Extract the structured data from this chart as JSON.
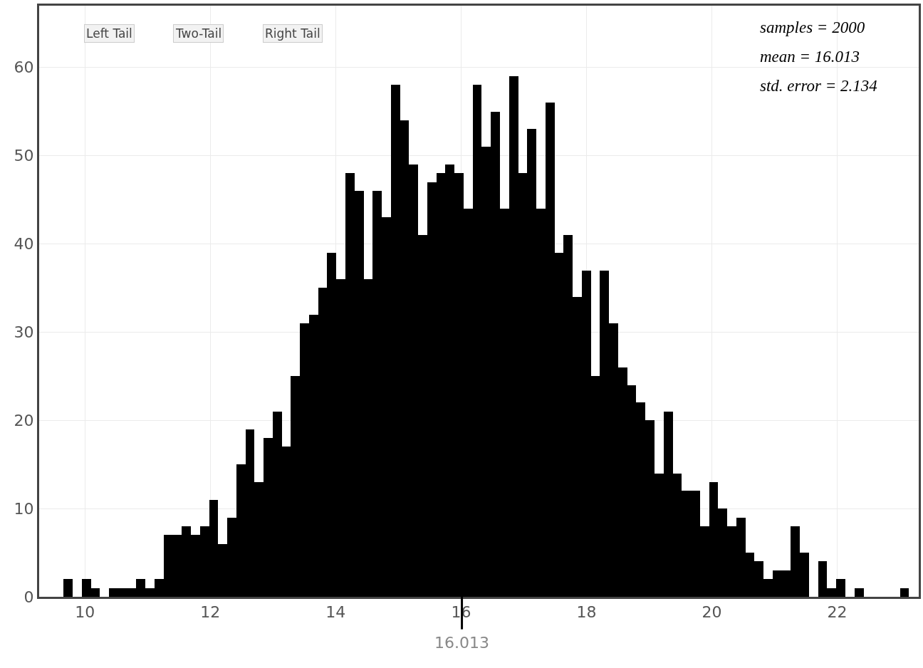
{
  "chart_data": {
    "type": "histogram",
    "bins": [
      9.66,
      9.805,
      9.95,
      10.095,
      10.24,
      10.385,
      10.53,
      10.675,
      10.82,
      10.965,
      11.11,
      11.255,
      11.4,
      11.545,
      11.69,
      11.835,
      11.98,
      12.125,
      12.27,
      12.415,
      12.56,
      12.705,
      12.85,
      12.995,
      13.14,
      13.285,
      13.43,
      13.575,
      13.72,
      13.865,
      14.01,
      14.155,
      14.3,
      14.445,
      14.59,
      14.735,
      14.88,
      15.025,
      15.17,
      15.315,
      15.46,
      15.605,
      15.75,
      15.895,
      16.04,
      16.185,
      16.33,
      16.475,
      16.62,
      16.765,
      16.91,
      17.055,
      17.2,
      17.345,
      17.49,
      17.635,
      17.78,
      17.925,
      18.07,
      18.215,
      18.36,
      18.505,
      18.65,
      18.795,
      18.94,
      19.085,
      19.23,
      19.375,
      19.52,
      19.665,
      19.81,
      19.955,
      20.1,
      20.245,
      20.39,
      20.535,
      20.68,
      20.825,
      20.97,
      21.115,
      21.26,
      21.405,
      21.55,
      21.695,
      21.84,
      21.985,
      22.13,
      22.275,
      22.42,
      22.565,
      22.71,
      22.855,
      23.0,
      23.145
    ],
    "values": [
      2,
      0,
      2,
      1,
      0,
      1,
      1,
      1,
      2,
      1,
      2,
      7,
      7,
      8,
      7,
      8,
      11,
      6,
      9,
      15,
      19,
      13,
      18,
      21,
      17,
      25,
      31,
      32,
      35,
      39,
      36,
      48,
      46,
      36,
      46,
      43,
      58,
      54,
      49,
      41,
      47,
      48,
      49,
      48,
      44,
      58,
      51,
      55,
      44,
      59,
      48,
      53,
      44,
      56,
      39,
      41,
      34,
      37,
      25,
      37,
      31,
      26,
      24,
      22,
      20,
      14,
      21,
      14,
      12,
      12,
      8,
      13,
      10,
      8,
      9,
      5,
      4,
      2,
      3,
      3,
      8,
      5,
      0,
      4,
      1,
      2,
      0,
      1,
      0,
      0,
      0,
      0,
      1
    ],
    "color": "#000000",
    "xlim": [
      9.27,
      23.3
    ],
    "xticks": [
      10,
      12,
      14,
      16,
      18,
      20,
      22
    ],
    "ylim": [
      0,
      67
    ],
    "yticks": [
      0,
      10,
      20,
      30,
      40,
      50,
      60
    ],
    "grid": true,
    "ref_lines": [
      {
        "axis": "x",
        "value": 16.013,
        "label": "16.013",
        "color": "#000000"
      }
    ],
    "annotations": [
      "Left Tail",
      "Two-Tail",
      "Right Tail",
      "samples = 2000",
      "mean = 16.013",
      "std. error = 2.134"
    ]
  }
}
